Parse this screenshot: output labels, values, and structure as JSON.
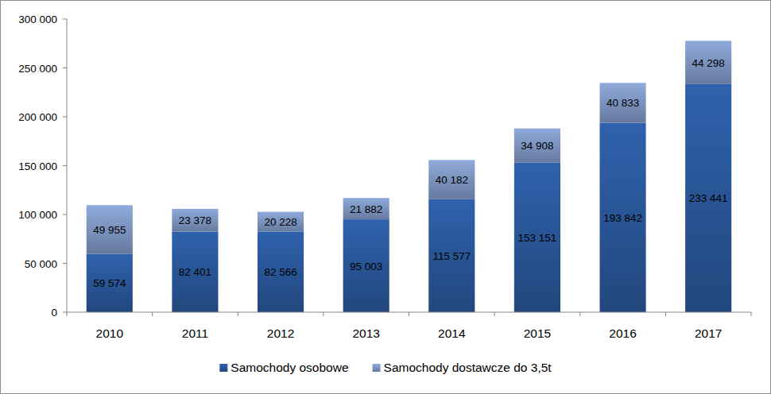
{
  "chart_data": {
    "type": "bar",
    "stacked": true,
    "data_labels": true,
    "grid": false,
    "legend": "bottom",
    "categories": [
      "2010",
      "2011",
      "2012",
      "2013",
      "2014",
      "2015",
      "2016",
      "2017"
    ],
    "series": [
      {
        "name": "Samochody osobowe",
        "color": "#2f62ad",
        "values": [
          59574,
          82401,
          82566,
          95003,
          115577,
          153151,
          193842,
          233441
        ],
        "value_labels": [
          "59 574",
          "82 401",
          "82 566",
          "95 003",
          "115 577",
          "153 151",
          "193 842",
          "233 441"
        ]
      },
      {
        "name": "Samochody dostawcze do 3,5t",
        "color": "#8eaadb",
        "values": [
          49955,
          23378,
          20228,
          21882,
          40182,
          34908,
          40833,
          44298
        ],
        "value_labels": [
          "49 955",
          "23 378",
          "20 228",
          "21 882",
          "40 182",
          "34 908",
          "40 833",
          "44 298"
        ]
      }
    ],
    "ylim": [
      0,
      300000
    ],
    "yticks": [
      0,
      {
        "value": 50000,
        "label": "50 000"
      },
      {
        "value": 100000,
        "label": "100 000"
      },
      {
        "value": 150000,
        "label": "150 000"
      },
      {
        "value": 200000,
        "label": "200 000"
      },
      {
        "value": 250000,
        "label": "250 000"
      },
      {
        "value": 300000,
        "label": "300 000"
      }
    ]
  }
}
